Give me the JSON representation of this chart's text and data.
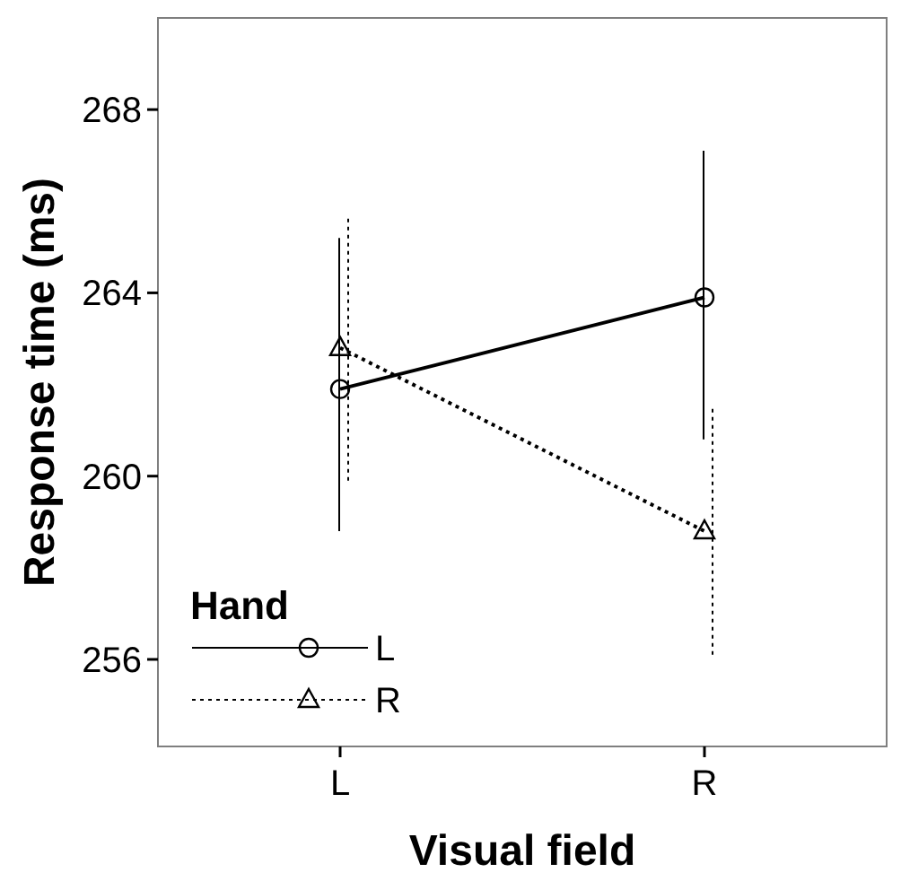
{
  "chart_data": {
    "type": "line",
    "xlabel": "Visual field",
    "ylabel": "Response time (ms)",
    "legend_title": "Hand",
    "categories": [
      "L",
      "R"
    ],
    "ylim": [
      254.1,
      270
    ],
    "yticks": [
      256,
      260,
      264,
      268
    ],
    "grid": false,
    "legend": "bottom left",
    "series": [
      {
        "name": "L",
        "color": "#000000",
        "marker": "circle",
        "line_style": "solid",
        "values": [
          261.9,
          263.9
        ],
        "errors": [
          [
            258.8,
            265.2
          ],
          [
            260.8,
            267.1
          ]
        ]
      },
      {
        "name": "R",
        "color": "#000000",
        "marker": "triangle",
        "line_style": "dotted",
        "values": [
          262.8,
          258.8
        ],
        "errors": [
          [
            259.9,
            265.7
          ],
          [
            256.1,
            261.5
          ]
        ]
      }
    ]
  }
}
